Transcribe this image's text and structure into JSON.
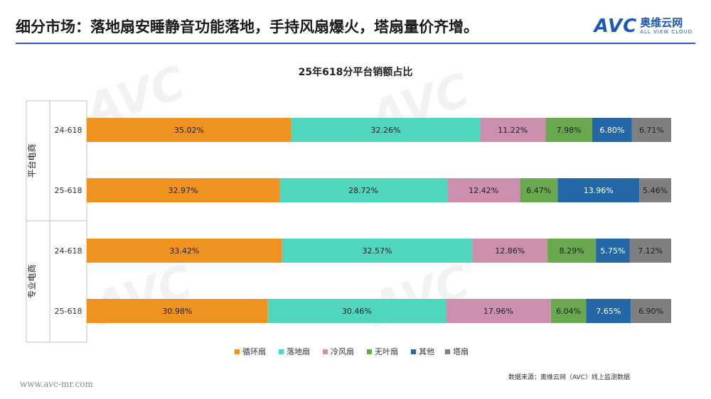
{
  "header": {
    "title": "细分市场：落地扇安睡静音功能落地，手持风扇爆火，塔扇量价齐增。",
    "logo_avc": "AVC",
    "logo_cn": "奥维云网",
    "logo_en": "ALL VIEW CLOUD"
  },
  "footer": {
    "url": "www.avc-mr.com",
    "source": "数据来源：奥维云网（AVC）线上监测数据"
  },
  "colors": {
    "循环扇": "#f0921f",
    "落地扇": "#4fd6bd",
    "冷风扇": "#cc8fae",
    "无叶扇": "#6aa84f",
    "其他": "#2467a7",
    "塔扇": "#7f7f7f"
  },
  "chart_data": {
    "type": "bar",
    "orientation": "horizontal",
    "stacked": "percent",
    "title": "25年618分平台销额占比",
    "groups": [
      {
        "label": "平台电商",
        "categories": [
          "24-618",
          "25-618"
        ]
      },
      {
        "label": "专业电商",
        "categories": [
          "24-618",
          "25-618"
        ]
      }
    ],
    "categories": [
      "24-618",
      "25-618",
      "24-618",
      "25-618"
    ],
    "series": [
      {
        "name": "循环扇",
        "values": [
          35.02,
          32.97,
          33.42,
          30.98
        ],
        "labels": [
          "35.02%",
          "32.97%",
          "33.42%",
          "30.98%"
        ]
      },
      {
        "name": "落地扇",
        "values": [
          32.26,
          28.72,
          32.57,
          30.46
        ],
        "labels": [
          "32.26%",
          "28.72%",
          "32.57%",
          "30.46%"
        ]
      },
      {
        "name": "冷风扇",
        "values": [
          11.22,
          12.42,
          12.86,
          17.96
        ],
        "labels": [
          "11.22%",
          "12.42%",
          "12.86%",
          "17.96%"
        ]
      },
      {
        "name": "无叶扇",
        "values": [
          7.98,
          6.47,
          8.29,
          6.04
        ],
        "labels": [
          "7.98%",
          "6.47%",
          "8.29%",
          "6.04%"
        ]
      },
      {
        "name": "其他",
        "values": [
          6.8,
          13.96,
          5.75,
          7.65
        ],
        "labels": [
          "6.80%",
          "13.96%",
          "5.75%",
          "7.65%"
        ]
      },
      {
        "name": "塔扇",
        "values": [
          6.71,
          5.46,
          7.12,
          6.9
        ],
        "labels": [
          "6.71%",
          "5.46%",
          "7.12%",
          "6.90%"
        ]
      }
    ],
    "xlim": [
      0,
      100
    ],
    "legend": "bottom"
  }
}
